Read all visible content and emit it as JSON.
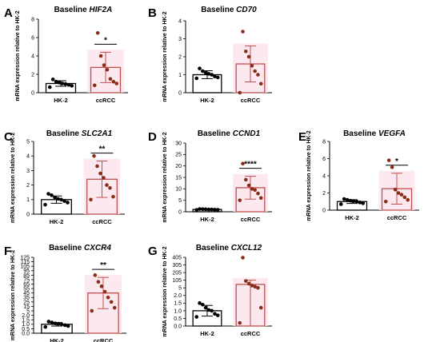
{
  "chart_data": [
    {
      "letter": "A",
      "title_prefix": "Baseline ",
      "gene": "HIF2A",
      "type": "bar",
      "ylabel": "mRNA expression relative to HK-2",
      "categories": [
        "HK-2",
        "ccRCC"
      ],
      "ylim": [
        0,
        8
      ],
      "yticks": [
        0,
        2,
        4,
        6,
        8
      ],
      "means": [
        1.0,
        2.75
      ],
      "sd": [
        0.3,
        1.65
      ],
      "points": [
        [
          0.6,
          0.75,
          0.85,
          0.95,
          1.0,
          1.1,
          1.2,
          1.45
        ],
        [
          0.8,
          1.0,
          1.2,
          1.5,
          2.5,
          3.0,
          4.0,
          6.5
        ]
      ],
      "significance": "*",
      "colors": [
        "#000000",
        "#c0504d"
      ]
    },
    {
      "letter": "B",
      "title_prefix": "Baseline ",
      "gene": "CD70",
      "type": "bar",
      "ylabel": "mRNA expression relative to HK-2",
      "categories": [
        "HK-2",
        "ccRCC"
      ],
      "ylim": [
        0,
        4
      ],
      "yticks": [
        0,
        1,
        2,
        3,
        4
      ],
      "means": [
        1.0,
        1.6
      ],
      "sd": [
        0.22,
        1.0
      ],
      "points": [
        [
          0.8,
          0.85,
          0.9,
          1.0,
          1.05,
          1.1,
          1.2,
          1.35
        ],
        [
          0.0,
          0.5,
          1.0,
          1.2,
          1.5,
          2.0,
          2.3,
          3.4
        ]
      ],
      "significance": "",
      "colors": [
        "#000000",
        "#c0504d"
      ]
    },
    {
      "letter": "C",
      "title_prefix": "Baseline ",
      "gene": "SLC2A1",
      "type": "bar",
      "ylabel": "mRNA expression relative to HK-2",
      "categories": [
        "HK-2",
        "ccRCC"
      ],
      "ylim": [
        0,
        5
      ],
      "yticks": [
        0,
        1,
        2,
        3,
        4,
        5
      ],
      "means": [
        1.0,
        2.4
      ],
      "sd": [
        0.25,
        1.25
      ],
      "points": [
        [
          0.65,
          0.8,
          0.9,
          1.0,
          1.05,
          1.15,
          1.3,
          1.4
        ],
        [
          1.0,
          1.2,
          1.8,
          2.0,
          2.5,
          2.8,
          3.3,
          4.0
        ]
      ],
      "significance": "**",
      "colors": [
        "#000000",
        "#c0504d"
      ]
    },
    {
      "letter": "D",
      "title_prefix": "Baseline ",
      "gene": "CCND1",
      "type": "bar",
      "ylabel": "mRNA expression relative to HK-2",
      "categories": [
        "HK-2",
        "ccRCC"
      ],
      "ylim": [
        0,
        30
      ],
      "yticks": [
        0,
        5,
        10,
        15,
        20,
        25,
        30
      ],
      "means": [
        1.0,
        10.5
      ],
      "sd": [
        0.2,
        5.0
      ],
      "points": [
        [
          0.8,
          0.85,
          0.9,
          1.0,
          1.0,
          1.1,
          1.15,
          1.2
        ],
        [
          5.0,
          6.0,
          8.0,
          9.5,
          10.0,
          11.5,
          14.0,
          21.0
        ]
      ],
      "significance": "****",
      "colors": [
        "#000000",
        "#c0504d"
      ]
    },
    {
      "letter": "E",
      "title_prefix": "Baseline ",
      "gene": "VEGFA",
      "type": "bar",
      "ylabel": "mRNA expression relative to HK-2",
      "categories": [
        "HK-2",
        "ccRCC"
      ],
      "ylim": [
        0,
        8
      ],
      "yticks": [
        0,
        2,
        4,
        6,
        8
      ],
      "means": [
        1.0,
        2.5
      ],
      "sd": [
        0.22,
        1.8
      ],
      "points": [
        [
          0.7,
          0.8,
          0.9,
          1.0,
          1.05,
          1.1,
          1.2,
          1.3
        ],
        [
          1.0,
          1.2,
          1.5,
          1.8,
          2.0,
          2.4,
          5.0,
          5.8
        ]
      ],
      "significance": "*",
      "colors": [
        "#000000",
        "#c0504d"
      ]
    },
    {
      "letter": "F",
      "title_prefix": "Baseline ",
      "gene": "CXCR4",
      "type": "bar",
      "ylabel": "mRNA expression relative to HK-2",
      "categories": [
        "HK-2",
        "ccRCC"
      ],
      "yticks": [
        0.0,
        0.5,
        1.0,
        1.5,
        2.0,
        5,
        15,
        25,
        35,
        45,
        55,
        65,
        75,
        85,
        95,
        105,
        115,
        125
      ],
      "ytick_labels": [
        "0.0",
        "0.5",
        "1.0",
        "1.5",
        "2.0",
        "5",
        "15",
        "25",
        "35",
        "45",
        "55",
        "65",
        "75",
        "85",
        "95",
        "105",
        "115",
        "125"
      ],
      "means": [
        1.0,
        45
      ],
      "sd": [
        0.2,
        35
      ],
      "points": [
        [
          0.7,
          0.8,
          0.9,
          1.0,
          1.05,
          1.1,
          1.2,
          1.3
        ],
        [
          5,
          12,
          25,
          35,
          48,
          60,
          70,
          85
        ]
      ],
      "significance": "**",
      "colors": [
        "#000000",
        "#c0504d"
      ]
    },
    {
      "letter": "G",
      "title_prefix": "Baseline ",
      "gene": "CXCL12",
      "type": "bar",
      "ylabel": "mRNA expression relative to HK-2",
      "categories": [
        "HK-2",
        "ccRCC"
      ],
      "yticks": [
        0.0,
        0.5,
        1.0,
        1.5,
        2.0,
        5,
        105,
        205,
        305,
        405
      ],
      "ytick_labels": [
        "0.0",
        "0.5",
        "1.0",
        "1.5",
        "2.0",
        "5",
        "105",
        "205",
        "305",
        "405"
      ],
      "means": [
        1.0,
        50
      ],
      "sd": [
        0.35,
        55
      ],
      "points": [
        [
          0.6,
          0.7,
          0.8,
          1.0,
          1.05,
          1.2,
          1.4,
          1.5
        ],
        [
          0.2,
          1.2,
          5,
          20,
          35,
          60,
          95,
          400
        ]
      ],
      "significance": "",
      "colors": [
        "#000000",
        "#c0504d"
      ]
    }
  ]
}
